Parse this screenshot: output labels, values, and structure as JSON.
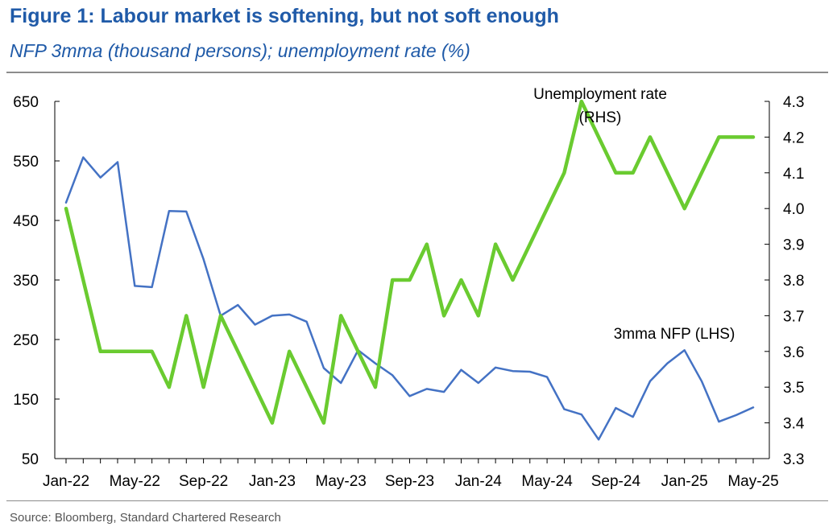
{
  "header": {
    "title": "Figure 1: Labour market is softening, but not soft enough",
    "subtitle": "NFP 3mma (thousand persons); unemployment rate (%)"
  },
  "footer": {
    "source": "Source: Bloomberg, Standard Chartered Research"
  },
  "chart_data": {
    "type": "line",
    "x": [
      "Jan-22",
      "Feb-22",
      "Mar-22",
      "Apr-22",
      "May-22",
      "Jun-22",
      "Jul-22",
      "Aug-22",
      "Sep-22",
      "Oct-22",
      "Nov-22",
      "Dec-22",
      "Jan-23",
      "Feb-23",
      "Mar-23",
      "Apr-23",
      "May-23",
      "Jun-23",
      "Jul-23",
      "Aug-23",
      "Sep-23",
      "Oct-23",
      "Nov-23",
      "Dec-23",
      "Jan-24",
      "Feb-24",
      "Mar-24",
      "Apr-24",
      "May-24",
      "Jun-24",
      "Jul-24",
      "Aug-24",
      "Sep-24",
      "Oct-24",
      "Nov-24",
      "Dec-24",
      "Jan-25",
      "Feb-25",
      "Mar-25",
      "Apr-25",
      "May-25"
    ],
    "x_tick_labels": [
      "Jan-22",
      "May-22",
      "Sep-22",
      "Jan-23",
      "May-23",
      "Sep-23",
      "Jan-24",
      "May-24",
      "Sep-24",
      "Jan-25",
      "May-25"
    ],
    "series": [
      {
        "axis": "left",
        "color": "#4472c4",
        "values": [
          480,
          556,
          522,
          548,
          340,
          338,
          466,
          465,
          385,
          290,
          308,
          275,
          290,
          292,
          280,
          202,
          177,
          232,
          210,
          190,
          155,
          167,
          162,
          199,
          177,
          203,
          197,
          196,
          187,
          133,
          124,
          82,
          135,
          120,
          180,
          210,
          232,
          180,
          112,
          123,
          136
        ]
      },
      {
        "axis": "right",
        "color": "#6acb30",
        "values": [
          4.0,
          3.8,
          3.6,
          3.6,
          3.6,
          3.6,
          3.5,
          3.7,
          3.5,
          3.7,
          3.6,
          3.5,
          3.4,
          3.6,
          3.5,
          3.4,
          3.7,
          3.6,
          3.5,
          3.8,
          3.8,
          3.9,
          3.7,
          3.8,
          3.7,
          3.9,
          3.8,
          3.9,
          4.0,
          4.1,
          4.3,
          4.2,
          4.1,
          4.1,
          4.2,
          4.1,
          4.0,
          4.1,
          4.2,
          4.2,
          4.2
        ]
      }
    ],
    "left_axis": {
      "ylim": [
        50,
        650
      ],
      "ticks": [
        "50",
        "150",
        "250",
        "350",
        "450",
        "550",
        "650"
      ]
    },
    "right_axis": {
      "ylim": [
        3.3,
        4.3
      ],
      "ticks": [
        "3.3",
        "3.4",
        "3.5",
        "3.6",
        "3.7",
        "3.8",
        "3.9",
        "4.0",
        "4.1",
        "4.2",
        "4.3"
      ]
    },
    "annotations": [
      {
        "lines": [
          "Unemployment rate",
          "(RHS)"
        ]
      },
      {
        "lines": [
          "3mma NFP (LHS)"
        ]
      }
    ],
    "grid": false,
    "legend": "none"
  }
}
